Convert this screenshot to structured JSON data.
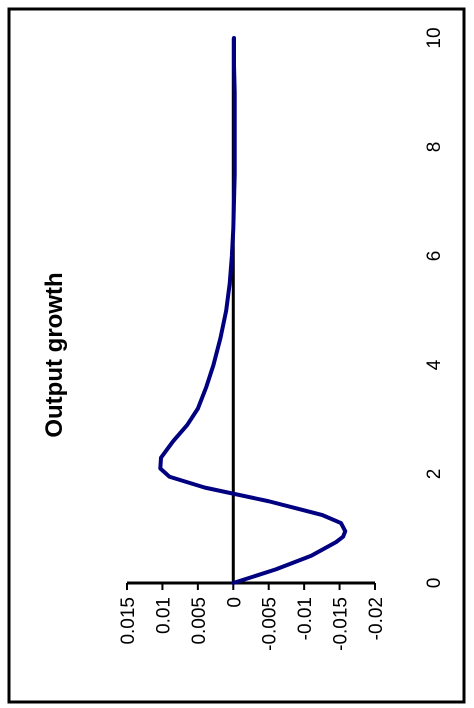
{
  "colors": {
    "background": "#ffffff",
    "frame": "#000000",
    "axis": "#000000",
    "series_line": "#000080"
  },
  "chart_data": {
    "type": "line",
    "orientation": "rotated 90 degrees counter-clockwise",
    "title": "Output growth",
    "xlabel": "",
    "ylabel": "",
    "xlim": [
      0,
      10
    ],
    "ylim": [
      -0.02,
      0.015
    ],
    "x_ticks": [
      "0",
      "2",
      "4",
      "6",
      "8",
      "10"
    ],
    "y_ticks": [
      "0.015",
      "0.01",
      "0.005",
      "0",
      "-0.005",
      "-0.01",
      "-0.015",
      "-0.02"
    ],
    "grid": false,
    "legend": "none",
    "series": [
      {
        "x": [
          0,
          0.25,
          0.5,
          0.75,
          0.85,
          0.95,
          1.1,
          1.25,
          1.5,
          1.75,
          1.95,
          2.1,
          2.3,
          2.6,
          2.9,
          3.2,
          3.6,
          4.0,
          4.5,
          5.0,
          5.5,
          6.0,
          6.5,
          7.0,
          7.5,
          8.0,
          8.5,
          9.0,
          9.5,
          10.0
        ],
        "y": [
          0,
          -0.006,
          -0.011,
          -0.0145,
          -0.0155,
          -0.0158,
          -0.0152,
          -0.0125,
          -0.005,
          0.004,
          0.009,
          0.0103,
          0.0102,
          0.0085,
          0.0065,
          0.005,
          0.0038,
          0.0028,
          0.0018,
          0.001,
          0.0005,
          0.0002,
          0,
          -0.0001,
          -0.0002,
          -0.0002,
          -0.0002,
          -0.0002,
          -0.0001,
          -0.0001
        ]
      }
    ]
  }
}
